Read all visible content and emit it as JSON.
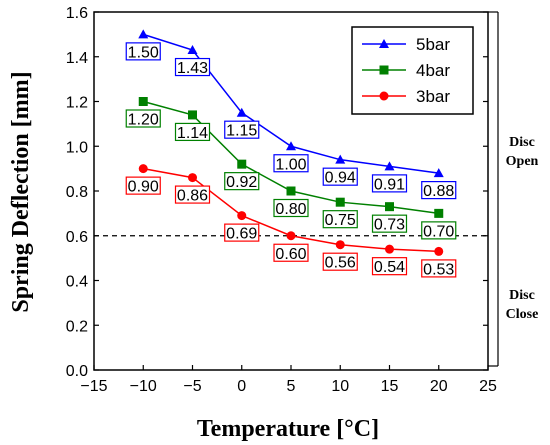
{
  "chart_data": {
    "type": "line",
    "xlabel": "Temperature [°C]",
    "ylabel": "Spring Deflection [mm]",
    "xlim": [
      -15,
      25
    ],
    "ylim": [
      0.0,
      1.6
    ],
    "xticks": [
      "−15",
      "−10",
      "−5",
      "0",
      "5",
      "10",
      "15",
      "20",
      "25"
    ],
    "yticks": [
      "0.0",
      "0.2",
      "0.4",
      "0.6",
      "0.8",
      "1.0",
      "1.2",
      "1.4",
      "1.6"
    ],
    "x": [
      -10,
      -5,
      0,
      5,
      10,
      15,
      20
    ],
    "series": [
      {
        "name": "5bar",
        "color": "#0000ff",
        "marker": "triangle",
        "values": [
          1.5,
          1.43,
          1.15,
          1.0,
          0.94,
          0.91,
          0.88
        ],
        "labels": [
          "1.50",
          "1.43",
          "1.15",
          "1.00",
          "0.94",
          "0.91",
          "0.88"
        ]
      },
      {
        "name": "4bar",
        "color": "#008000",
        "marker": "square",
        "values": [
          1.2,
          1.14,
          0.92,
          0.8,
          0.75,
          0.73,
          0.7
        ],
        "labels": [
          "1.20",
          "1.14",
          "0.92",
          "0.80",
          "0.75",
          "0.73",
          "0.70"
        ]
      },
      {
        "name": "3bar",
        "color": "#ff0000",
        "marker": "circle",
        "values": [
          0.9,
          0.86,
          0.69,
          0.6,
          0.56,
          0.54,
          0.53
        ],
        "labels": [
          "0.90",
          "0.86",
          "0.69",
          "0.60",
          "0.56",
          "0.54",
          "0.53"
        ]
      }
    ],
    "threshold": 0.6,
    "legend_position": "top-right",
    "grid": false,
    "annotations": {
      "open": [
        "Disc",
        "Open"
      ],
      "close": [
        "Disc",
        "Close"
      ]
    }
  }
}
